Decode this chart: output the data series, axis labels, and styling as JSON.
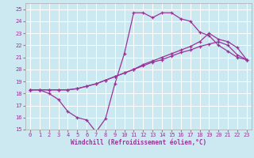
{
  "title": "",
  "xlabel": "Windchill (Refroidissement éolien,°C)",
  "bg_color": "#cce8f0",
  "line_color": "#993399",
  "grid_color": "#ffffff",
  "xlim": [
    -0.5,
    23.5
  ],
  "ylim": [
    15,
    25.5
  ],
  "xticks": [
    0,
    1,
    2,
    3,
    4,
    5,
    6,
    7,
    8,
    9,
    10,
    11,
    12,
    13,
    14,
    15,
    16,
    17,
    18,
    19,
    20,
    21,
    22,
    23
  ],
  "yticks": [
    15,
    16,
    17,
    18,
    19,
    20,
    21,
    22,
    23,
    24,
    25
  ],
  "line1_x": [
    0,
    1,
    2,
    3,
    4,
    5,
    6,
    7,
    8,
    9,
    10,
    11,
    12,
    13,
    14,
    15,
    16,
    17,
    18,
    19,
    20,
    21,
    22,
    23
  ],
  "line1_y": [
    18.3,
    18.3,
    18.0,
    17.5,
    16.5,
    16.0,
    15.8,
    14.8,
    15.9,
    18.8,
    21.3,
    24.7,
    24.7,
    24.3,
    24.7,
    24.7,
    24.2,
    24.0,
    23.1,
    22.8,
    22.0,
    21.5,
    21.0,
    20.8
  ],
  "line2_x": [
    0,
    1,
    2,
    3,
    4,
    5,
    6,
    7,
    8,
    9,
    10,
    11,
    12,
    13,
    14,
    15,
    16,
    17,
    18,
    19,
    20,
    21,
    22,
    23
  ],
  "line2_y": [
    18.3,
    18.3,
    18.3,
    18.3,
    18.3,
    18.4,
    18.6,
    18.8,
    19.1,
    19.4,
    19.7,
    20.0,
    20.4,
    20.7,
    21.0,
    21.3,
    21.6,
    21.9,
    22.3,
    23.0,
    22.5,
    22.3,
    21.8,
    20.8
  ],
  "line3_x": [
    0,
    1,
    2,
    3,
    4,
    5,
    6,
    7,
    8,
    9,
    10,
    11,
    12,
    13,
    14,
    15,
    16,
    17,
    18,
    19,
    20,
    21,
    22,
    23
  ],
  "line3_y": [
    18.3,
    18.3,
    18.3,
    18.3,
    18.3,
    18.4,
    18.6,
    18.8,
    19.1,
    19.4,
    19.7,
    20.0,
    20.3,
    20.6,
    20.8,
    21.1,
    21.4,
    21.6,
    21.9,
    22.1,
    22.3,
    22.0,
    21.2,
    20.8
  ]
}
